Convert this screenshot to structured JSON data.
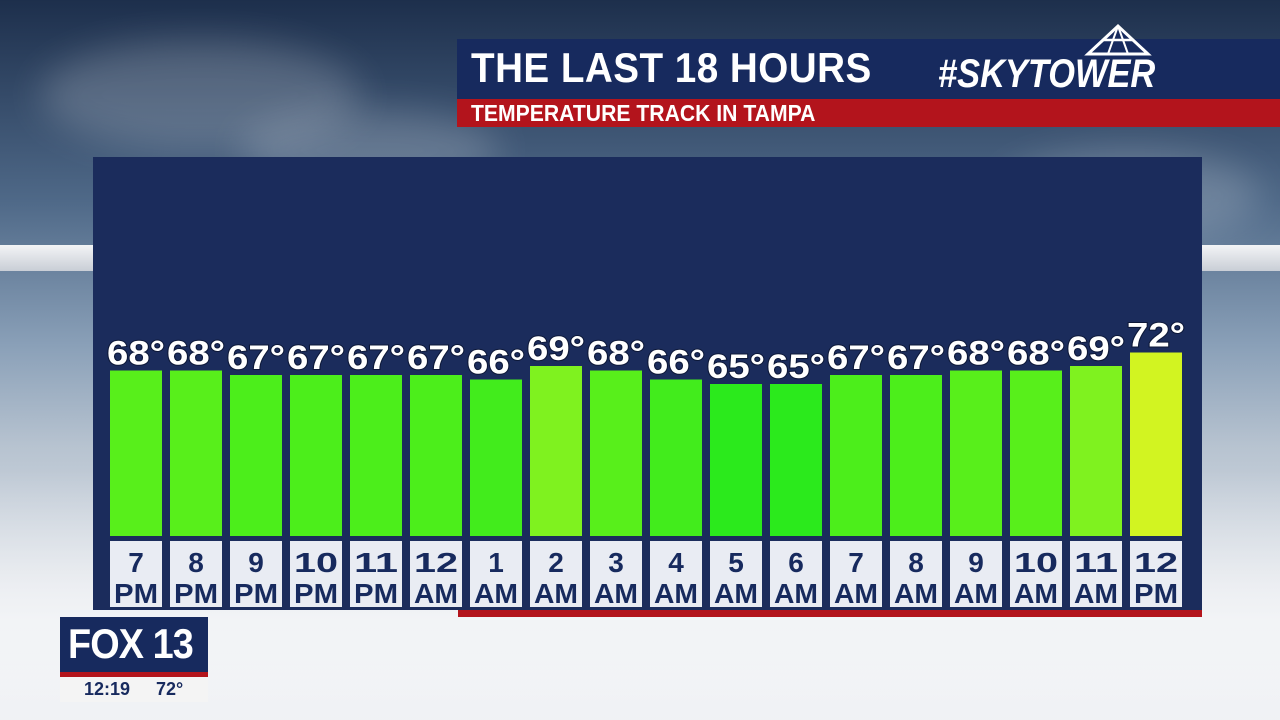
{
  "header": {
    "title": "THE LAST 18 HOURS",
    "subtitle": "TEMPERATURE TRACK IN TAMPA",
    "brand": "#SKYTOWER",
    "brand_icon": "tower-icon"
  },
  "station": {
    "logo": "FOX 13",
    "time": "12:19",
    "temp": "72°"
  },
  "chart_data": {
    "type": "bar",
    "categories": [
      "7 PM",
      "8 PM",
      "9 PM",
      "10 PM",
      "11 PM",
      "12 AM",
      "1 AM",
      "2 AM",
      "3 AM",
      "4 AM",
      "5 AM",
      "6 AM",
      "7 AM",
      "8 AM",
      "9 AM",
      "10 AM",
      "11 AM",
      "12 PM"
    ],
    "category_lines": [
      [
        "7",
        "PM"
      ],
      [
        "8",
        "PM"
      ],
      [
        "9",
        "PM"
      ],
      [
        "10",
        "PM"
      ],
      [
        "11",
        "PM"
      ],
      [
        "12",
        "AM"
      ],
      [
        "1",
        "AM"
      ],
      [
        "2",
        "AM"
      ],
      [
        "3",
        "AM"
      ],
      [
        "4",
        "AM"
      ],
      [
        "5",
        "AM"
      ],
      [
        "6",
        "AM"
      ],
      [
        "7",
        "AM"
      ],
      [
        "8",
        "AM"
      ],
      [
        "9",
        "AM"
      ],
      [
        "10",
        "AM"
      ],
      [
        "11",
        "AM"
      ],
      [
        "12",
        "PM"
      ]
    ],
    "values": [
      68,
      68,
      67,
      67,
      67,
      67,
      66,
      69,
      68,
      66,
      65,
      65,
      67,
      67,
      68,
      68,
      69,
      72
    ],
    "value_labels": [
      "68°",
      "68°",
      "67°",
      "67°",
      "67°",
      "67°",
      "66°",
      "69°",
      "68°",
      "66°",
      "65°",
      "65°",
      "67°",
      "67°",
      "68°",
      "68°",
      "69°",
      "72°"
    ],
    "bar_colors": [
      "#58ef1b",
      "#58ef1b",
      "#4cee1b",
      "#4cee1b",
      "#4cee1b",
      "#4cee1b",
      "#42ec1c",
      "#7ff21f",
      "#58ef1b",
      "#42ec1c",
      "#2bea1c",
      "#2bea1c",
      "#4cee1b",
      "#4cee1b",
      "#58ef1b",
      "#58ef1b",
      "#7ff21f",
      "#d2f421"
    ],
    "title": "",
    "xlabel": "",
    "ylabel": "",
    "grid": false,
    "legend": "none"
  },
  "colors": {
    "panel": "#1b2c5c",
    "accent_red": "#b3141c",
    "label_box": "#e9ecf3",
    "label_text": "#172a5e"
  }
}
